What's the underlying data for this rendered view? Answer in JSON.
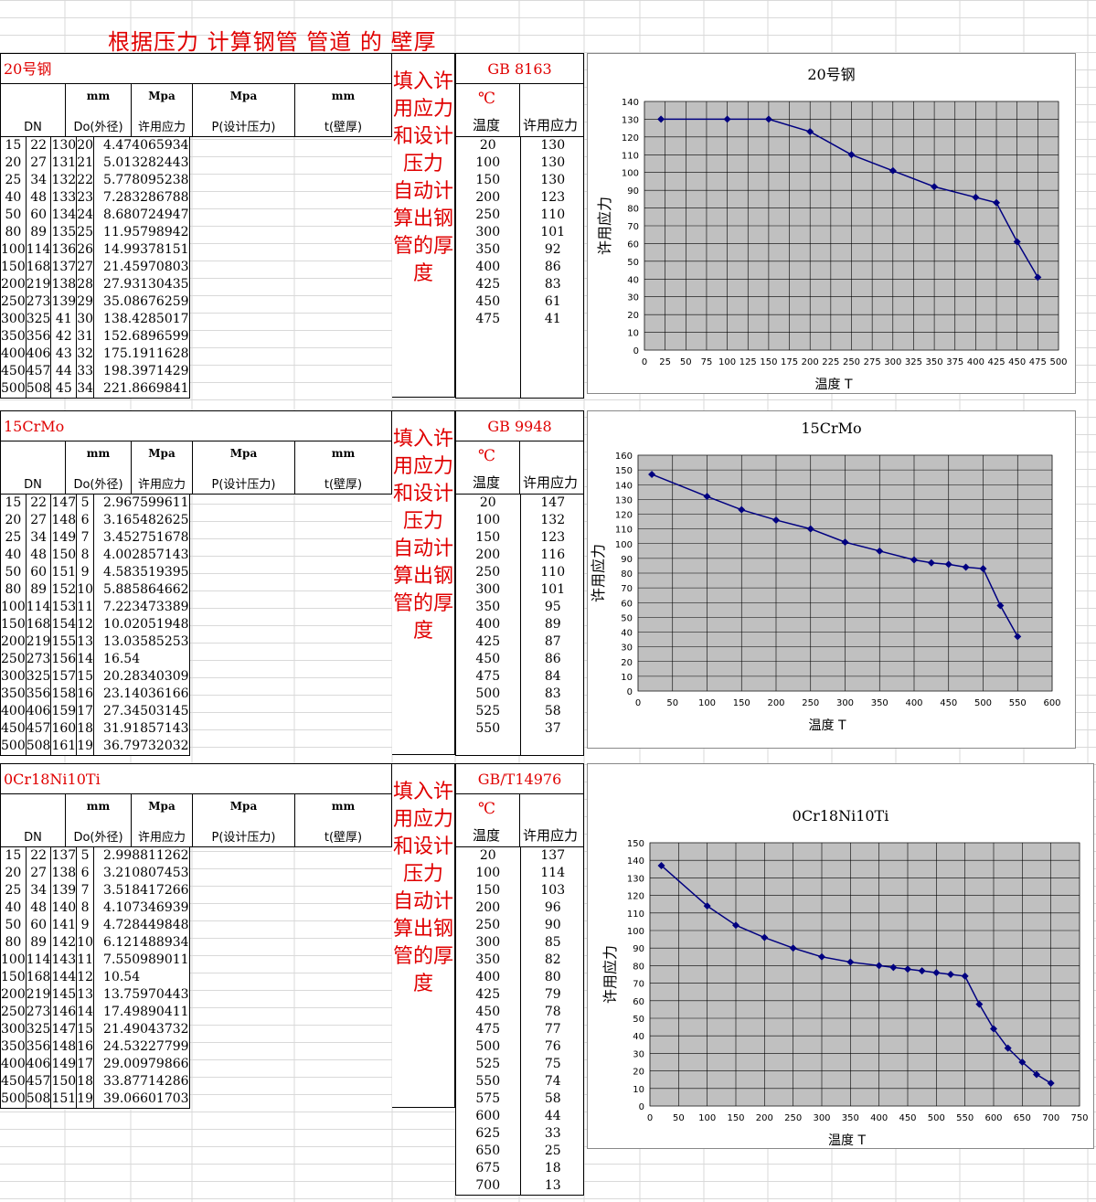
{
  "page_title": "根据压力 计算钢管 管道 的 壁厚",
  "col_headers": {
    "dn": "DN",
    "do_unit": "mm",
    "do": "Do(外径)",
    "stress_unit": "Mpa",
    "stress": "许用应力",
    "p_unit": "Mpa",
    "p": "P(设计压力)",
    "t_unit": "mm",
    "t": "t(壁厚)",
    "temp_unit": "℃",
    "temp": "温度",
    "allow": "许用应力"
  },
  "note": "填入许用应力和设计压力 自动计算出钢管的厚度",
  "sections": [
    {
      "material": "20号钢",
      "standard": "GB 8163",
      "rows": [
        [
          "15",
          "22",
          "130",
          "20",
          "4.474065934"
        ],
        [
          "20",
          "27",
          "131",
          "21",
          "5.013282443"
        ],
        [
          "25",
          "34",
          "132",
          "22",
          "5.778095238"
        ],
        [
          "40",
          "48",
          "133",
          "23",
          "7.283286788"
        ],
        [
          "50",
          "60",
          "134",
          "24",
          "8.680724947"
        ],
        [
          "80",
          "89",
          "135",
          "25",
          "11.95798942"
        ],
        [
          "100",
          "114",
          "136",
          "26",
          "14.99378151"
        ],
        [
          "150",
          "168",
          "137",
          "27",
          "21.45970803"
        ],
        [
          "200",
          "219",
          "138",
          "28",
          "27.93130435"
        ],
        [
          "250",
          "273",
          "139",
          "29",
          "35.08676259"
        ],
        [
          "300",
          "325",
          "41",
          "30",
          "138.4285017"
        ],
        [
          "350",
          "356",
          "42",
          "31",
          "152.6896599"
        ],
        [
          "400",
          "406",
          "43",
          "32",
          "175.1911628"
        ],
        [
          "450",
          "457",
          "44",
          "33",
          "198.3971429"
        ],
        [
          "500",
          "508",
          "45",
          "34",
          "221.8669841"
        ]
      ],
      "temp_rows": [
        [
          "20",
          "130"
        ],
        [
          "100",
          "130"
        ],
        [
          "150",
          "130"
        ],
        [
          "200",
          "123"
        ],
        [
          "250",
          "110"
        ],
        [
          "300",
          "101"
        ],
        [
          "350",
          "92"
        ],
        [
          "400",
          "86"
        ],
        [
          "425",
          "83"
        ],
        [
          "450",
          "61"
        ],
        [
          "475",
          "41"
        ]
      ]
    },
    {
      "material": "15CrMo",
      "standard": "GB 9948",
      "rows": [
        [
          "15",
          "22",
          "147",
          "5",
          "2.967599611"
        ],
        [
          "20",
          "27",
          "148",
          "6",
          "3.165482625"
        ],
        [
          "25",
          "34",
          "149",
          "7",
          "3.452751678"
        ],
        [
          "40",
          "48",
          "150",
          "8",
          "4.002857143"
        ],
        [
          "50",
          "60",
          "151",
          "9",
          "4.583519395"
        ],
        [
          "80",
          "89",
          "152",
          "10",
          "5.885864662"
        ],
        [
          "100",
          "114",
          "153",
          "11",
          "7.223473389"
        ],
        [
          "150",
          "168",
          "154",
          "12",
          "10.02051948"
        ],
        [
          "200",
          "219",
          "155",
          "13",
          "13.03585253"
        ],
        [
          "250",
          "273",
          "156",
          "14",
          "16.54"
        ],
        [
          "300",
          "325",
          "157",
          "15",
          "20.28340309"
        ],
        [
          "350",
          "356",
          "158",
          "16",
          "23.14036166"
        ],
        [
          "400",
          "406",
          "159",
          "17",
          "27.34503145"
        ],
        [
          "450",
          "457",
          "160",
          "18",
          "31.91857143"
        ],
        [
          "500",
          "508",
          "161",
          "19",
          "36.79732032"
        ]
      ],
      "temp_rows": [
        [
          "20",
          "147"
        ],
        [
          "100",
          "132"
        ],
        [
          "150",
          "123"
        ],
        [
          "200",
          "116"
        ],
        [
          "250",
          "110"
        ],
        [
          "300",
          "101"
        ],
        [
          "350",
          "95"
        ],
        [
          "400",
          "89"
        ],
        [
          "425",
          "87"
        ],
        [
          "450",
          "86"
        ],
        [
          "475",
          "84"
        ],
        [
          "500",
          "83"
        ],
        [
          "525",
          "58"
        ],
        [
          "550",
          "37"
        ]
      ]
    },
    {
      "material": "0Cr18Ni10Ti",
      "standard": "GB/T14976",
      "rows": [
        [
          "15",
          "22",
          "137",
          "5",
          "2.998811262"
        ],
        [
          "20",
          "27",
          "138",
          "6",
          "3.210807453"
        ],
        [
          "25",
          "34",
          "139",
          "7",
          "3.518417266"
        ],
        [
          "40",
          "48",
          "140",
          "8",
          "4.107346939"
        ],
        [
          "50",
          "60",
          "141",
          "9",
          "4.728449848"
        ],
        [
          "80",
          "89",
          "142",
          "10",
          "6.121488934"
        ],
        [
          "100",
          "114",
          "143",
          "11",
          "7.550989011"
        ],
        [
          "150",
          "168",
          "144",
          "12",
          "10.54"
        ],
        [
          "200",
          "219",
          "145",
          "13",
          "13.75970443"
        ],
        [
          "250",
          "273",
          "146",
          "14",
          "17.49890411"
        ],
        [
          "300",
          "325",
          "147",
          "15",
          "21.49043732"
        ],
        [
          "350",
          "356",
          "148",
          "16",
          "24.53227799"
        ],
        [
          "400",
          "406",
          "149",
          "17",
          "29.00979866"
        ],
        [
          "450",
          "457",
          "150",
          "18",
          "33.87714286"
        ],
        [
          "500",
          "508",
          "151",
          "19",
          "39.06601703"
        ]
      ],
      "temp_rows": [
        [
          "20",
          "137"
        ],
        [
          "100",
          "114"
        ],
        [
          "150",
          "103"
        ],
        [
          "200",
          "96"
        ],
        [
          "250",
          "90"
        ],
        [
          "300",
          "85"
        ],
        [
          "350",
          "82"
        ],
        [
          "400",
          "80"
        ],
        [
          "425",
          "79"
        ],
        [
          "450",
          "78"
        ],
        [
          "475",
          "77"
        ],
        [
          "500",
          "76"
        ],
        [
          "525",
          "75"
        ],
        [
          "550",
          "74"
        ],
        [
          "575",
          "58"
        ],
        [
          "600",
          "44"
        ],
        [
          "625",
          "33"
        ],
        [
          "650",
          "25"
        ],
        [
          "675",
          "18"
        ],
        [
          "700",
          "13"
        ]
      ]
    }
  ],
  "chart_data": [
    {
      "type": "line",
      "title": "20号钢",
      "xlabel": "温度 T",
      "ylabel": "许用应力",
      "x": [
        20,
        100,
        150,
        200,
        250,
        300,
        350,
        400,
        425,
        450,
        475
      ],
      "values": [
        130,
        130,
        130,
        123,
        110,
        101,
        92,
        86,
        83,
        61,
        41
      ],
      "xlim": [
        0,
        500
      ],
      "xstep": 25,
      "ylim": [
        0,
        140
      ],
      "ystep": 10,
      "color": "#000080",
      "plot_bg": "#c0c0c0"
    },
    {
      "type": "line",
      "title": "15CrMo",
      "xlabel": "温度 T",
      "ylabel": "许用应力",
      "x": [
        20,
        100,
        150,
        200,
        250,
        300,
        350,
        400,
        425,
        450,
        475,
        500,
        525,
        550
      ],
      "values": [
        147,
        132,
        123,
        116,
        110,
        101,
        95,
        89,
        87,
        86,
        84,
        83,
        58,
        37
      ],
      "xlim": [
        0,
        600
      ],
      "xstep": 50,
      "ylim": [
        0,
        160
      ],
      "ystep": 10,
      "color": "#000080",
      "plot_bg": "#c0c0c0"
    },
    {
      "type": "line",
      "title": "0Cr18Ni10Ti",
      "xlabel": "温度 T",
      "ylabel": "许用应力",
      "x": [
        20,
        100,
        150,
        200,
        250,
        300,
        350,
        400,
        425,
        450,
        475,
        500,
        525,
        550,
        575,
        600,
        625,
        650,
        675,
        700
      ],
      "values": [
        137,
        114,
        103,
        96,
        90,
        85,
        82,
        80,
        79,
        78,
        77,
        76,
        75,
        74,
        58,
        44,
        33,
        25,
        18,
        13
      ],
      "xlim": [
        0,
        750
      ],
      "xstep": 50,
      "ylim": [
        0,
        150
      ],
      "ystep": 10,
      "color": "#000080",
      "plot_bg": "#c0c0c0"
    }
  ]
}
